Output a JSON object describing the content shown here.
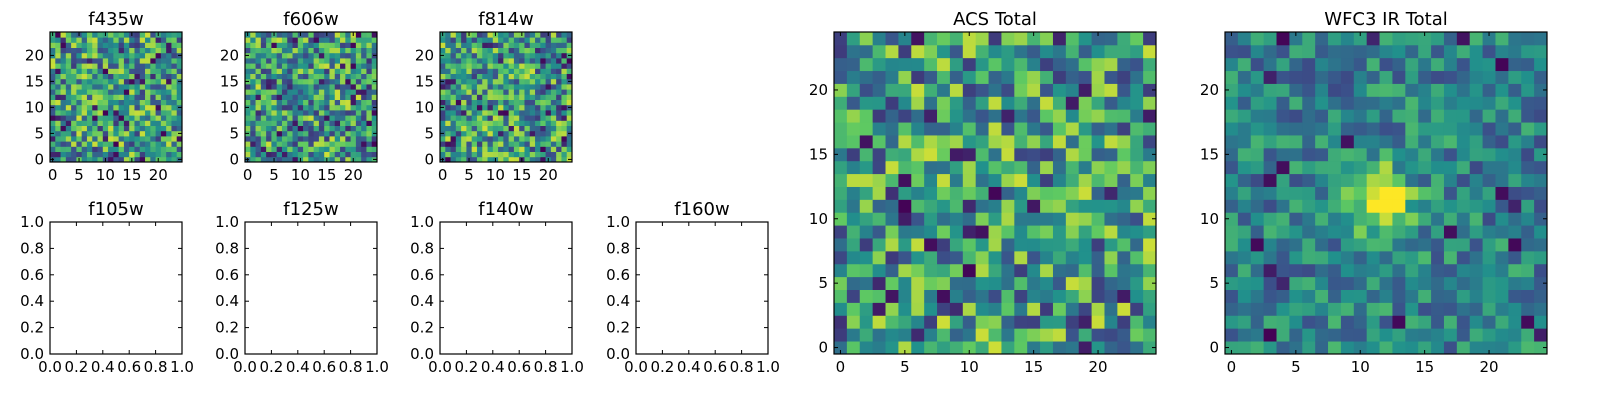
{
  "chart_data": [
    {
      "id": "f435w",
      "type": "heatmap",
      "title": "f435w",
      "x_ticks": [
        "0",
        "5",
        "10",
        "15",
        "20"
      ],
      "y_ticks": [
        "0",
        "5",
        "10",
        "15",
        "20"
      ],
      "grid_size": [
        25,
        25
      ],
      "seed": 11,
      "hotspot": null
    },
    {
      "id": "f606w",
      "type": "heatmap",
      "title": "f606w",
      "x_ticks": [
        "0",
        "5",
        "10",
        "15",
        "20"
      ],
      "y_ticks": [
        "0",
        "5",
        "10",
        "15",
        "20"
      ],
      "grid_size": [
        25,
        25
      ],
      "seed": 23,
      "hotspot": null
    },
    {
      "id": "f814w",
      "type": "heatmap",
      "title": "f814w",
      "x_ticks": [
        "0",
        "5",
        "10",
        "15",
        "20"
      ],
      "y_ticks": [
        "0",
        "5",
        "10",
        "15",
        "20"
      ],
      "grid_size": [
        25,
        25
      ],
      "seed": 37,
      "hotspot": null
    },
    {
      "id": "acs-total",
      "type": "heatmap",
      "title": "ACS Total",
      "x_ticks": [
        "0",
        "5",
        "10",
        "15",
        "20"
      ],
      "y_ticks": [
        "0",
        "5",
        "10",
        "15",
        "20"
      ],
      "grid_size": [
        25,
        25
      ],
      "seed": 51,
      "hotspot": null
    },
    {
      "id": "wfc3-ir-total",
      "type": "heatmap",
      "title": "WFC3 IR Total",
      "x_ticks": [
        "0",
        "5",
        "10",
        "15",
        "20"
      ],
      "y_ticks": [
        "0",
        "5",
        "10",
        "15",
        "20"
      ],
      "grid_size": [
        25,
        25
      ],
      "seed": 73,
      "hotspot": [
        11.5,
        11.5
      ]
    },
    {
      "id": "f105w",
      "type": "empty",
      "title": "f105w",
      "x_ticks": [
        "0.0",
        "0.2",
        "0.4",
        "0.6",
        "0.8",
        "1.0"
      ],
      "y_ticks": [
        "0.0",
        "0.2",
        "0.4",
        "0.6",
        "0.8",
        "1.0"
      ],
      "xlim": [
        0,
        1
      ],
      "ylim": [
        0,
        1
      ]
    },
    {
      "id": "f125w",
      "type": "empty",
      "title": "f125w",
      "x_ticks": [
        "0.0",
        "0.2",
        "0.4",
        "0.6",
        "0.8",
        "1.0"
      ],
      "y_ticks": [
        "0.0",
        "0.2",
        "0.4",
        "0.6",
        "0.8",
        "1.0"
      ],
      "xlim": [
        0,
        1
      ],
      "ylim": [
        0,
        1
      ]
    },
    {
      "id": "f140w",
      "type": "empty",
      "title": "f140w",
      "x_ticks": [
        "0.0",
        "0.2",
        "0.4",
        "0.6",
        "0.8",
        "1.0"
      ],
      "y_ticks": [
        "0.0",
        "0.2",
        "0.4",
        "0.6",
        "0.8",
        "1.0"
      ],
      "xlim": [
        0,
        1
      ],
      "ylim": [
        0,
        1
      ]
    },
    {
      "id": "f160w",
      "type": "empty",
      "title": "f160w",
      "x_ticks": [
        "0.0",
        "0.2",
        "0.4",
        "0.6",
        "0.8",
        "1.0"
      ],
      "y_ticks": [
        "0.0",
        "0.2",
        "0.4",
        "0.6",
        "0.8",
        "1.0"
      ],
      "xlim": [
        0,
        1
      ],
      "ylim": [
        0,
        1
      ]
    }
  ],
  "colors": {
    "viridis": [
      "#440154",
      "#3b528b",
      "#21918c",
      "#5ec962",
      "#fde725"
    ]
  }
}
